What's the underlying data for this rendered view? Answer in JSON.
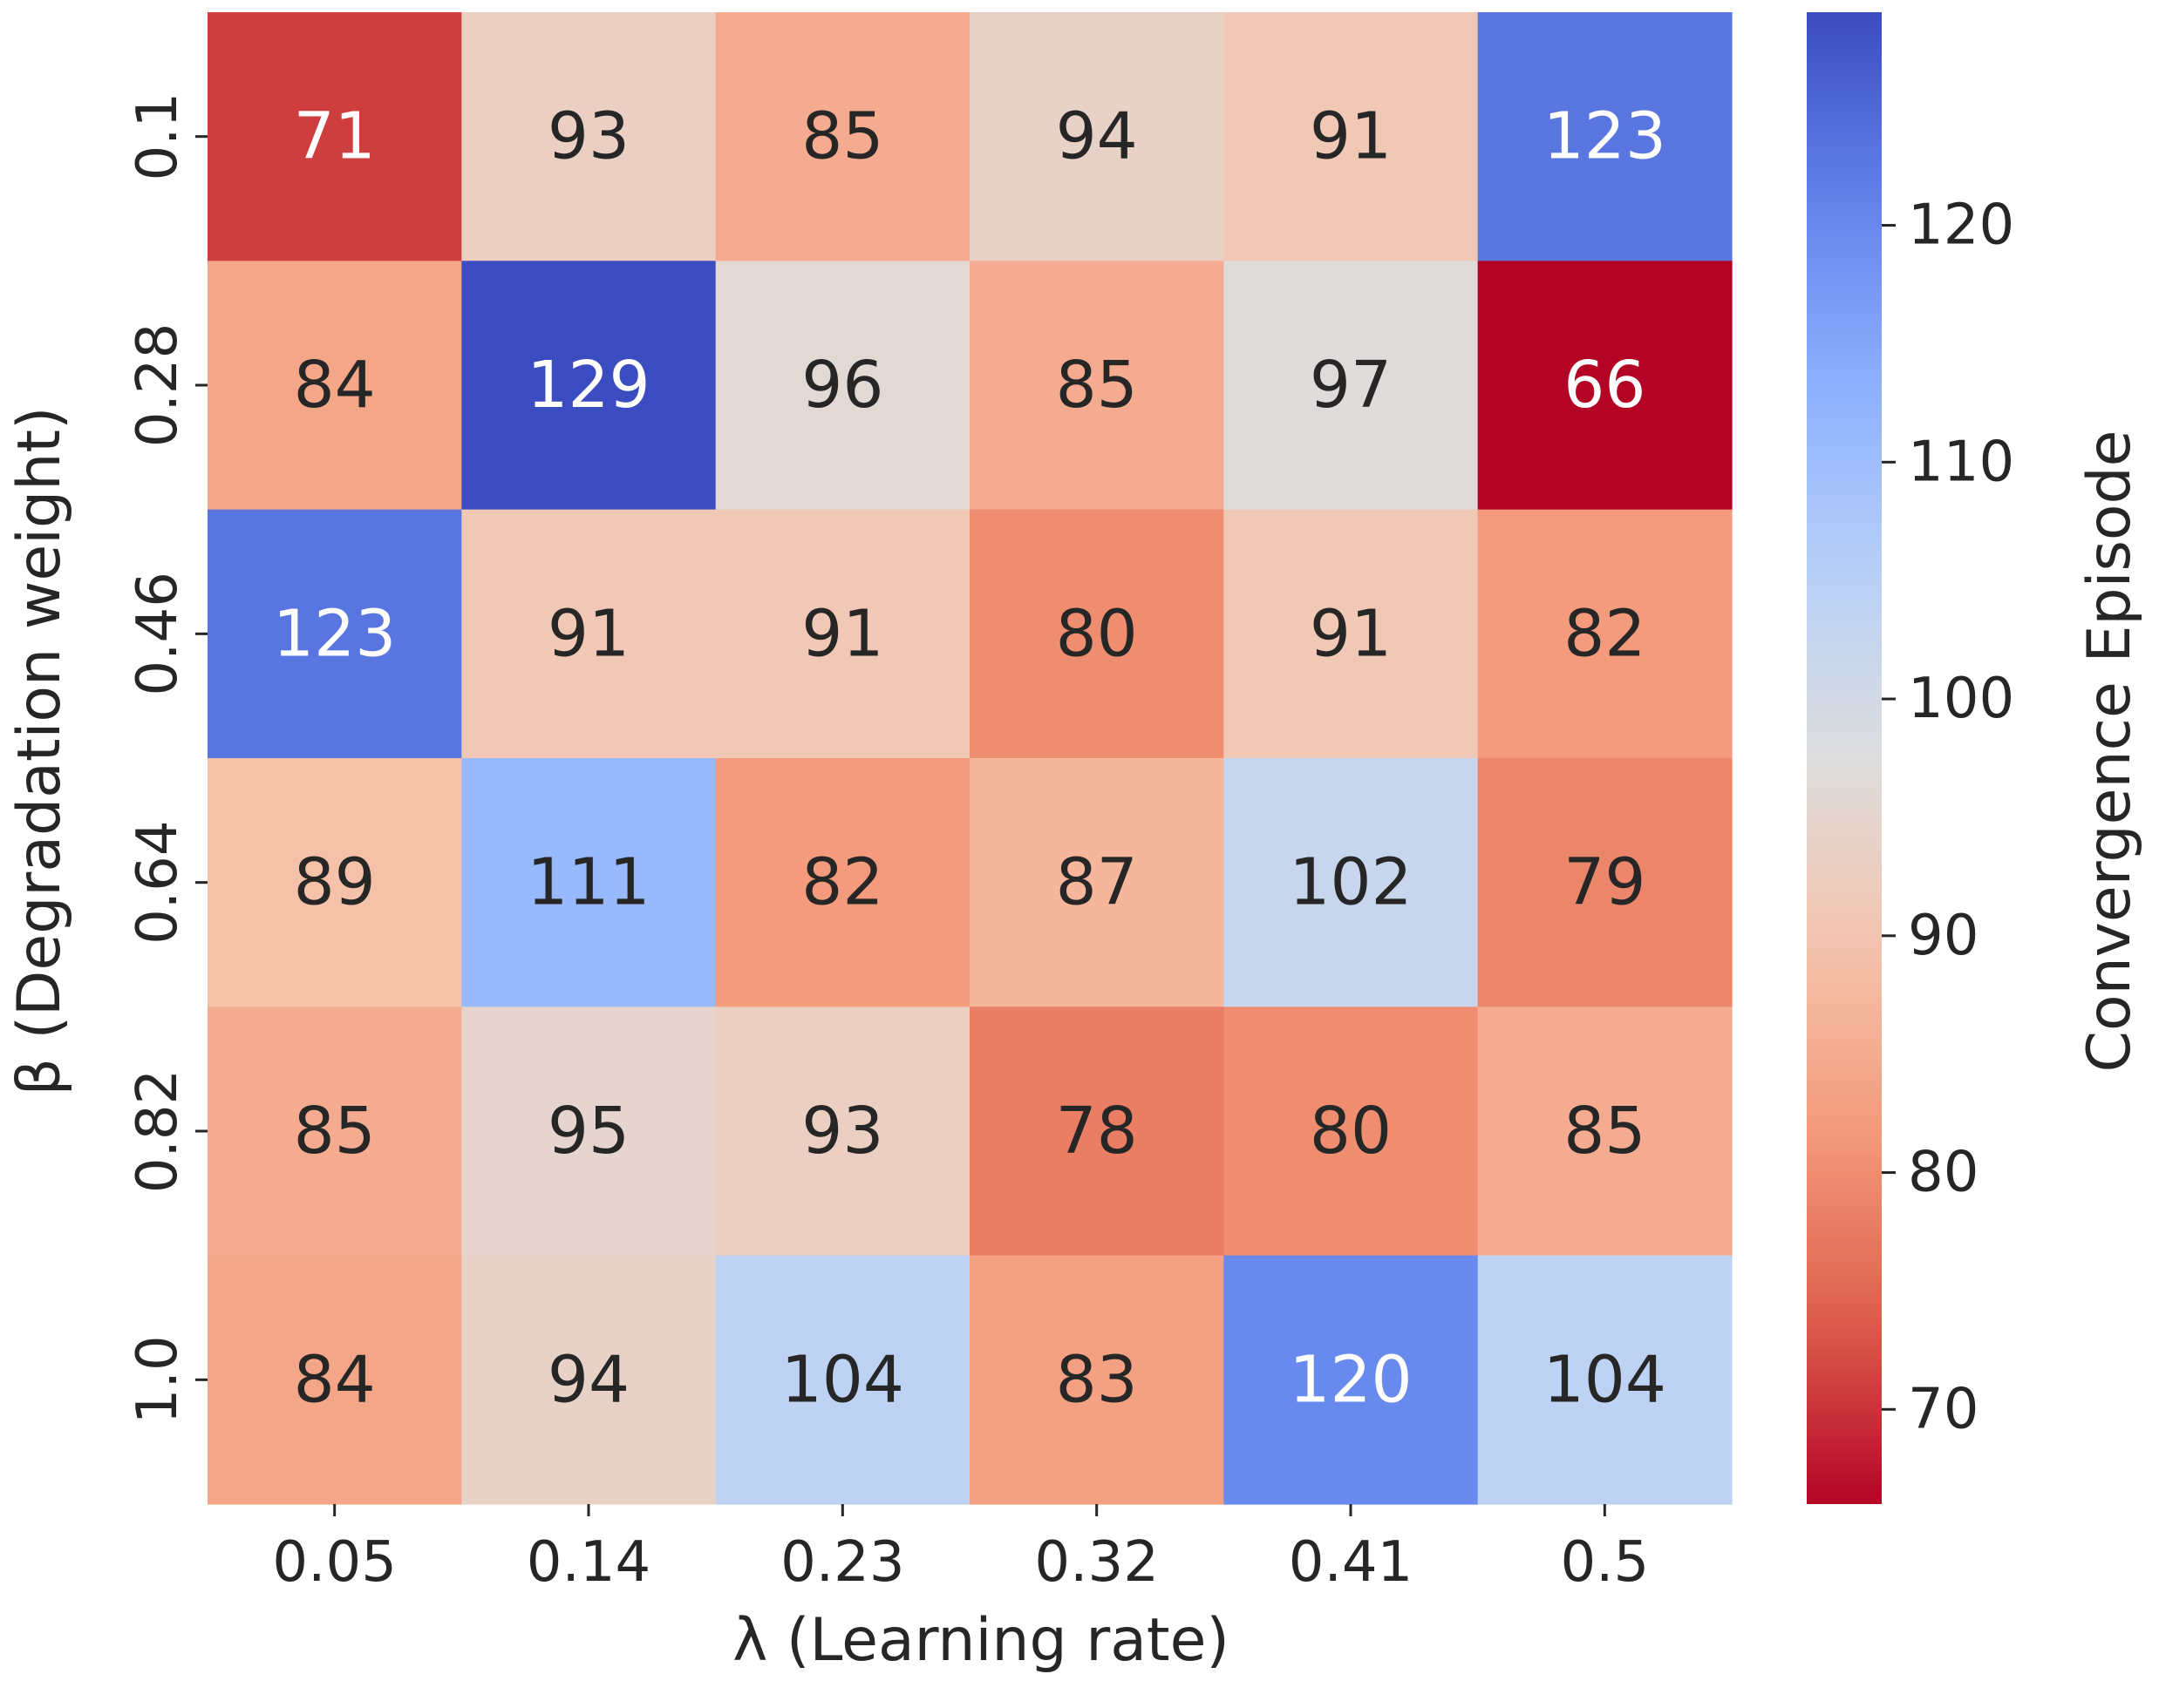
{
  "chart_data": {
    "type": "heatmap",
    "xlabel": "λ (Learning rate)",
    "ylabel": "β (Degradation weight)",
    "x_categories": [
      "0.05",
      "0.14",
      "0.23",
      "0.32",
      "0.41",
      "0.5"
    ],
    "y_categories": [
      "0.1",
      "0.28",
      "0.46",
      "0.64",
      "0.82",
      "1.0"
    ],
    "values": [
      [
        71,
        93,
        85,
        94,
        91,
        123
      ],
      [
        84,
        129,
        96,
        85,
        97,
        66
      ],
      [
        123,
        91,
        91,
        80,
        91,
        82
      ],
      [
        89,
        111,
        82,
        87,
        102,
        79
      ],
      [
        85,
        95,
        93,
        78,
        80,
        85
      ],
      [
        84,
        94,
        104,
        83,
        120,
        104
      ]
    ],
    "colorbar": {
      "label": "Convergence Episode",
      "range": [
        66,
        129
      ],
      "ticks": [
        "70",
        "80",
        "90",
        "100",
        "110",
        "120"
      ],
      "colormap": "coolwarm_r"
    },
    "annotation_colors": {
      "dark": "#262626",
      "light": "#ffffff"
    }
  }
}
